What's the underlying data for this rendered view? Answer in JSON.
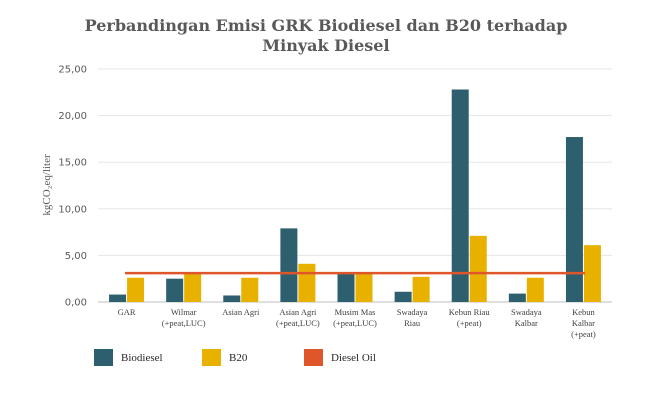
{
  "chart_data": {
    "type": "bar",
    "title": "Perbandingan Emisi GRK Biodiesel dan B20 terhadap Minyak Diesel",
    "title_lines": [
      "Perbandingan Emisi GRK Biodiesel dan B20 terhadap",
      "Minyak Diesel"
    ],
    "ylabel": "kgCO₂eq/liter",
    "xlabel": "",
    "ylim": [
      0,
      25
    ],
    "yticks": [
      "0,00",
      "5,00",
      "10,00",
      "15,00",
      "20,00",
      "25,00"
    ],
    "grid": true,
    "legend_position": "bottom-left",
    "categories": [
      [
        "GAR"
      ],
      [
        "Wilmar",
        "(+peat,LUC)"
      ],
      [
        "Asian Agri"
      ],
      [
        "Asian Agri",
        "(+peat,LUC)"
      ],
      [
        "Musim Mas",
        "(+peat,LUC)"
      ],
      [
        "Swadaya",
        "Riau"
      ],
      [
        "Kebun Riau",
        "(+peat)"
      ],
      [
        "Swadaya",
        "Kalbar"
      ],
      [
        "Kebun",
        "Kalbar",
        "(+peat)"
      ]
    ],
    "series": [
      {
        "name": "Biodiesel",
        "color": "#2e5f6e",
        "values": [
          0.8,
          2.5,
          0.7,
          7.9,
          3.0,
          1.1,
          22.8,
          0.9,
          17.7
        ]
      },
      {
        "name": "B20",
        "color": "#e8b100",
        "values": [
          2.6,
          3.1,
          2.6,
          4.1,
          3.1,
          2.7,
          7.1,
          2.6,
          6.1
        ]
      }
    ],
    "reference_line": {
      "name": "Diesel Oil",
      "color": "#e0562b",
      "value": 3.1
    }
  }
}
